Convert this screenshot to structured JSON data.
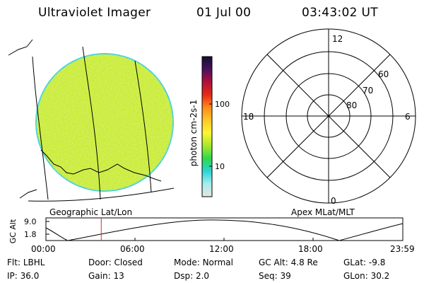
{
  "header": {
    "instrument": "Ultraviolet Imager",
    "date": "01 Jul 00",
    "time": "03:43:02 UT"
  },
  "left_panel": {
    "caption": "Geographic Lat/Lon"
  },
  "right_panel": {
    "caption": "Apex MLat/MLT",
    "mlt_labels": {
      "top": "12",
      "bottom": "0",
      "left": "18",
      "right": "6"
    },
    "lat_labels": [
      "60",
      "70",
      "80"
    ]
  },
  "colorbar": {
    "label": "photon cm-2s-1",
    "ticks": [
      "100",
      "10"
    ],
    "scale": "log",
    "colors": [
      "#e6e6e6",
      "#a8ecec",
      "#29d6d6",
      "#2fd84a",
      "#a7e82e",
      "#fff533",
      "#ffc828",
      "#ff8a1a",
      "#e62a1a",
      "#b0103a",
      "#4a1060",
      "#101030"
    ]
  },
  "gc_alt_plot": {
    "ylabel": "GC Alt",
    "y_ticks": [
      "9.0",
      "1.8"
    ],
    "x_ticks": [
      "00:00",
      "06:00",
      "12:00",
      "18:00",
      "23:59"
    ],
    "marker_time": "03:43",
    "line_color": "#000000",
    "marker_color": "#d0302e"
  },
  "footer": {
    "row1": [
      {
        "label": "Flt:",
        "value": "LBHL"
      },
      {
        "label": "Door:",
        "value": "Closed"
      },
      {
        "label": "Mode:",
        "value": "Normal"
      },
      {
        "label": "GC Alt:",
        "value": "4.8 Re"
      },
      {
        "label": "GLat:",
        "value": "-9.8"
      }
    ],
    "row2": [
      {
        "label": "IP:",
        "value": "36.0"
      },
      {
        "label": "Gain:",
        "value": "13"
      },
      {
        "label": "Dsp:",
        "value": "2.0"
      },
      {
        "label": "Seq:",
        "value": "39"
      },
      {
        "label": "GLon:",
        "value": "30.2"
      }
    ]
  }
}
